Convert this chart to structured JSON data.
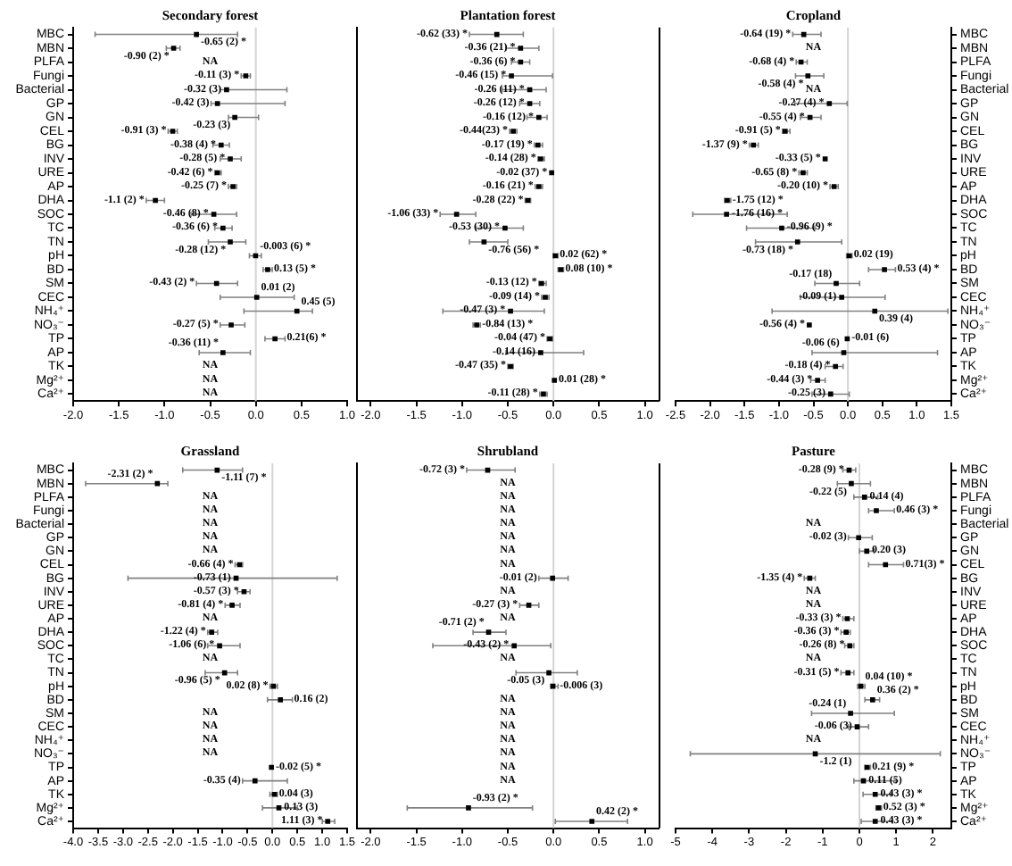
{
  "chart_data": [
    {
      "type": "scatter",
      "title": "Secondary forest",
      "orientation": "horizontal",
      "marker": "square",
      "color": "#000000",
      "categories": [
        "MBC",
        "MBN",
        "PLFA",
        "Fungi",
        "Bacterial",
        "GP",
        "GN",
        "CEL",
        "BG",
        "INV",
        "URE",
        "AP",
        "DHA",
        "SOC",
        "TC",
        "TN",
        "pH",
        "BD",
        "SM",
        "CEC",
        "NH₄⁺",
        "NO₃⁻",
        "TP",
        "AP",
        "TK",
        "Mg²⁺",
        "Ca²⁺"
      ],
      "values": [
        -0.65,
        -0.9,
        null,
        -0.11,
        -0.32,
        -0.42,
        -0.23,
        -0.91,
        -0.38,
        -0.28,
        -0.42,
        -0.25,
        -1.1,
        -0.46,
        -0.36,
        -0.28,
        -0.003,
        0.13,
        -0.43,
        0.01,
        0.45,
        -0.27,
        0.21,
        -0.36,
        null,
        null,
        null
      ],
      "errors": [
        [
          -1.76,
          -0.2
        ],
        [
          -0.98,
          -0.83
        ],
        null,
        [
          -0.16,
          -0.06
        ],
        [
          -0.39,
          0.34
        ],
        [
          -0.49,
          0.32
        ],
        [
          -0.3,
          0.03
        ],
        [
          -0.96,
          -0.86
        ],
        [
          -0.47,
          -0.29
        ],
        [
          -0.39,
          -0.16
        ],
        [
          -0.45,
          -0.38
        ],
        [
          -0.3,
          -0.21
        ],
        [
          -1.2,
          -1.0
        ],
        [
          -0.71,
          -0.21
        ],
        [
          -0.45,
          -0.26
        ],
        [
          -0.52,
          -0.11
        ],
        [
          -0.07,
          0.06
        ],
        [
          0.08,
          0.18
        ],
        [
          -0.65,
          -0.2
        ],
        [
          -0.39,
          0.42
        ],
        [
          -0.13,
          0.62
        ],
        [
          -0.39,
          -0.12
        ],
        [
          0.1,
          0.32
        ],
        [
          -0.62,
          -0.06
        ],
        null,
        null,
        null
      ],
      "value_labels": [
        "-0.65 (2) *",
        "-0.90 (2) *",
        "NA",
        "-0.11 (3) *",
        "-0.32 (3)",
        "-0.42 (3)",
        "-0.23 (3)",
        "-0.91 (3) *",
        "-0.38 (4) *",
        "-0.28 (5) *",
        "-0.42 (6) *",
        "-0.25 (7) *",
        "-1.1 (2) *",
        "-0.46 (8) *",
        "-0.36 (6) *",
        "-0.28 (12) *",
        "-0.003 (6) *",
        "0.13 (5) *",
        "-0.43 (2) *",
        "0.01 (2)",
        "0.45 (5)",
        "-0.27 (5) *",
        "0.21(6) *",
        "-0.36 (11) *",
        "NA",
        "NA",
        "NA"
      ],
      "xlim": [
        -2,
        1
      ],
      "xticks": [
        {
          "value": -2,
          "label": "-2.0"
        },
        -1.5,
        {
          "value": -1,
          "label": "-1.0"
        },
        -0.5,
        {
          "value": 0,
          "label": "0.0"
        },
        0.5,
        {
          "value": 1,
          "label": "1.0"
        }
      ],
      "ref_lines": [
        {
          "axis": "x",
          "value": 0,
          "color": "#d4d4d4"
        }
      ]
    },
    {
      "type": "scatter",
      "title": "Plantation forest",
      "orientation": "horizontal",
      "marker": "square",
      "color": "#000000",
      "tick_labels": "x",
      "categories": [
        null,
        null,
        null,
        null,
        null,
        null,
        null,
        null,
        null,
        null,
        null,
        null,
        null,
        null,
        null,
        null,
        null,
        null,
        null,
        null,
        null,
        null,
        null,
        null,
        null,
        null,
        null
      ],
      "values": [
        -0.62,
        -0.36,
        -0.36,
        -0.46,
        -0.26,
        -0.26,
        -0.16,
        -0.44,
        -0.17,
        -0.14,
        -0.02,
        -0.16,
        -0.28,
        -1.06,
        -0.53,
        -0.76,
        0.02,
        0.08,
        -0.13,
        -0.09,
        -0.47,
        -0.84,
        -0.04,
        -0.14,
        -0.47,
        0.01,
        -0.11
      ],
      "errors": [
        [
          -0.92,
          -0.33
        ],
        [
          -0.52,
          -0.16
        ],
        [
          -0.46,
          -0.26
        ],
        [
          -0.56,
          -0.01
        ],
        [
          -0.56,
          -0.08
        ],
        [
          -0.37,
          -0.15
        ],
        [
          -0.29,
          -0.07
        ],
        [
          -0.48,
          -0.4
        ],
        [
          -0.21,
          -0.12
        ],
        [
          -0.17,
          -0.1
        ],
        null,
        [
          -0.2,
          -0.12
        ],
        [
          -0.31,
          -0.25
        ],
        [
          -1.24,
          -0.85
        ],
        [
          -0.85,
          -0.33
        ],
        [
          -0.92,
          -0.5
        ],
        [
          0.0,
          0.05
        ],
        [
          0.05,
          0.11
        ],
        [
          -0.16,
          -0.08
        ],
        [
          -0.13,
          -0.05
        ],
        [
          -1.21,
          -0.1
        ],
        [
          -0.88,
          -0.8
        ],
        [
          -0.07,
          -0.01
        ],
        [
          -0.52,
          0.33
        ],
        [
          -0.5,
          -0.44
        ],
        null,
        [
          -0.15,
          -0.07
        ]
      ],
      "value_labels": [
        "-0.62 (33) *",
        "-0.36 (21) *",
        "-0.36 (6) *",
        "-0.46 (15) *",
        "-0.26 (11) *",
        "-0.26 (12) *",
        "-0.16 (12) *",
        "-0.44(23) *",
        "-0.17 (19) *",
        "-0.14 (28) *",
        "-0.02 (37) *",
        "-0.16 (21) *",
        "-0.28 (22) *",
        "-1.06 (33) *",
        "-0.53 (30) *",
        "-0.76 (56) *",
        "0.02 (62) *",
        "0.08 (10) *",
        "-0.13 (12) *",
        "-0.09 (14) *",
        "-0.47 (3) *",
        "-0.84 (13) *",
        "-0.04 (47) *",
        "-0.14 (16)",
        "-0.47 (35) *",
        "0.01 (28) *",
        "-0.11 (28) *"
      ],
      "xlim": [
        -2.15,
        1.15
      ],
      "xticks": [
        {
          "value": -2,
          "label": "-2.0"
        },
        -1.5,
        {
          "value": -1,
          "label": "-1.0"
        },
        -0.5,
        {
          "value": 0,
          "label": "0.0"
        },
        0.5,
        {
          "value": 1,
          "label": "1.0"
        }
      ],
      "ref_lines": [
        {
          "axis": "x",
          "value": 0,
          "color": "#d4d4d4"
        }
      ]
    },
    {
      "type": "scatter",
      "title": "Cropland",
      "orientation": "horizontal",
      "marker": "square",
      "color": "#000000",
      "categories": [
        "MBC",
        "MBN",
        "PLFA",
        "Fungi",
        "Bacterial",
        "GP",
        "GN",
        "CEL",
        "BG",
        "INV",
        "URE",
        "AP",
        "DHA",
        "SOC",
        "TC",
        "TN",
        "pH",
        "BD",
        "SM",
        "CEC",
        "NH₄⁺",
        "NO₃⁻",
        "TP",
        "AP",
        "TK",
        "Mg²⁺",
        "Ca²⁺"
      ],
      "values": [
        -0.64,
        null,
        -0.68,
        -0.58,
        null,
        -0.27,
        -0.55,
        -0.91,
        -1.37,
        -0.33,
        -0.65,
        -0.2,
        -1.75,
        -1.76,
        -0.96,
        -0.73,
        0.02,
        0.53,
        -0.17,
        -0.09,
        0.39,
        -0.56,
        -0.01,
        -0.06,
        -0.18,
        -0.44,
        -0.25
      ],
      "errors": [
        [
          -0.8,
          -0.39
        ],
        null,
        [
          -0.75,
          -0.59
        ],
        [
          -0.76,
          -0.35
        ],
        null,
        [
          -0.77,
          -0.01
        ],
        [
          -0.69,
          -0.39
        ],
        [
          -0.95,
          -0.84
        ],
        [
          -1.43,
          -1.3
        ],
        null,
        [
          -0.71,
          -0.59
        ],
        [
          -0.26,
          -0.14
        ],
        [
          -1.79,
          -1.7
        ],
        [
          -2.25,
          -0.88
        ],
        [
          -1.47,
          -0.48
        ],
        [
          -1.34,
          -0.09
        ],
        [
          -0.02,
          0.06
        ],
        [
          0.3,
          0.69
        ],
        [
          -0.48,
          0.17
        ],
        [
          -0.69,
          0.54
        ],
        [
          -1.1,
          1.45
        ],
        null,
        null,
        [
          -0.52,
          1.3
        ],
        [
          -0.33,
          -0.07
        ],
        [
          -0.54,
          -0.33
        ],
        [
          -0.52,
          0.02
        ]
      ],
      "value_labels": [
        "-0.64 (19) *",
        "NA",
        "-0.68 (4) *",
        "-0.58 (4) *",
        "NA",
        "-0.27 (4) *",
        "-0.55 (4) *",
        "-0.91 (5) *",
        "-1.37 (9) *",
        "-0.33 (5) *",
        "-0.65 (8) *",
        "-0.20 (10) *",
        "-1.75 (12) *",
        "-1.76 (16) *",
        "-0.96 (9) *",
        "-0.73 (18) *",
        "0.02 (19)",
        "0.53 (4) *",
        "-0.17 (18)",
        "-0.09 (1)",
        "0.39 (4)",
        "-0.56 (4) *",
        "-0.01 (6)",
        "-0.06 (6)",
        "-0.18 (4) *",
        "-0.44 (3) *",
        "-0.25 (3)"
      ],
      "xlim": [
        -2.5,
        1.5
      ],
      "xticks": [
        -2.5,
        {
          "value": -2,
          "label": "-2.0"
        },
        -1.5,
        {
          "value": -1,
          "label": "-1.0"
        },
        -0.5,
        {
          "value": 0,
          "label": "0.0"
        },
        0.5,
        {
          "value": 1,
          "label": "1.0"
        },
        1.5
      ],
      "ref_lines": [
        {
          "axis": "x",
          "value": 0,
          "color": "#d4d4d4"
        }
      ]
    },
    {
      "type": "scatter",
      "title": "Grassland",
      "orientation": "horizontal",
      "marker": "square",
      "color": "#000000",
      "categories": [
        "MBC",
        "MBN",
        "PLFA",
        "Fungi",
        "Bacterial",
        "GP",
        "GN",
        "CEL",
        "BG",
        "INV",
        "URE",
        "AP",
        "DHA",
        "SOC",
        "TC",
        "TN",
        "pH",
        "BD",
        "SM",
        "CEC",
        "NH₄⁺",
        "NO₃⁻",
        "TP",
        "AP",
        "TK",
        "Mg²⁺",
        "Ca²⁺"
      ],
      "values": [
        -1.11,
        -2.31,
        null,
        null,
        null,
        null,
        null,
        -0.66,
        -0.73,
        -0.57,
        -0.81,
        null,
        -1.22,
        -1.06,
        null,
        -0.96,
        0.02,
        0.16,
        null,
        null,
        null,
        null,
        -0.02,
        -0.35,
        0.04,
        0.13,
        1.11
      ],
      "errors": [
        [
          -1.8,
          -0.6
        ],
        [
          -3.75,
          -2.1
        ],
        null,
        null,
        null,
        null,
        null,
        [
          -0.75,
          -0.6
        ],
        [
          -2.9,
          1.3
        ],
        [
          -0.7,
          -0.45
        ],
        [
          -0.95,
          -0.65
        ],
        null,
        [
          -1.3,
          -1.1
        ],
        [
          -1.3,
          -0.65
        ],
        null,
        [
          -1.35,
          -0.7
        ],
        [
          -0.05,
          0.1
        ],
        [
          -0.1,
          0.4
        ],
        null,
        null,
        null,
        null,
        null,
        [
          -0.6,
          0.3
        ],
        [
          -0.05,
          0.1
        ],
        [
          -0.2,
          0.5
        ],
        [
          1.0,
          1.25
        ]
      ],
      "value_labels": [
        "-1.11 (7) *",
        "-2.31 (2) *",
        "NA",
        "NA",
        "NA",
        "NA",
        "NA",
        "-0.66 (4) *",
        "-0.73 (1)",
        "-0.57 (3) *",
        "-0.81 (4) *",
        "NA",
        "-1.22 (4) *",
        "-1.06 (6) *",
        "NA",
        "-0.96 (5) *",
        "0.02 (8) *",
        "0.16 (2)",
        "NA",
        "NA",
        "NA",
        "NA",
        "-0.02 (5) *",
        "-0.35 (4)",
        "0.04 (3)",
        "0.13 (3)",
        "1.11 (3) *"
      ],
      "xlim": [
        -4,
        1.5
      ],
      "xticks": [
        {
          "value": -4,
          "label": "-4.0"
        },
        -3.5,
        {
          "value": -3,
          "label": "-3.0"
        },
        -2.5,
        {
          "value": -2,
          "label": "-2.0"
        },
        -1.5,
        {
          "value": -1,
          "label": "-1.0"
        },
        -0.5,
        {
          "value": 0,
          "label": "0.0"
        },
        0.5,
        {
          "value": 1,
          "label": "1.0"
        },
        1.5
      ],
      "ref_lines": [
        {
          "axis": "x",
          "value": 0,
          "color": "#d4d4d4"
        }
      ]
    },
    {
      "type": "scatter",
      "title": "Shrubland",
      "orientation": "horizontal",
      "marker": "square",
      "color": "#000000",
      "tick_labels": "x",
      "categories": [
        null,
        null,
        null,
        null,
        null,
        null,
        null,
        null,
        null,
        null,
        null,
        null,
        null,
        null,
        null,
        null,
        null,
        null,
        null,
        null,
        null,
        null,
        null,
        null,
        null,
        null,
        null
      ],
      "values": [
        -0.72,
        null,
        null,
        null,
        null,
        null,
        null,
        null,
        -0.01,
        null,
        -0.27,
        null,
        -0.71,
        -0.43,
        null,
        -0.05,
        -0.006,
        null,
        null,
        null,
        null,
        null,
        null,
        null,
        null,
        -0.93,
        0.42
      ],
      "errors": [
        [
          -0.95,
          -0.42
        ],
        null,
        null,
        null,
        null,
        null,
        null,
        null,
        [
          -0.16,
          0.16
        ],
        null,
        [
          -0.37,
          -0.16
        ],
        null,
        [
          -0.88,
          -0.52
        ],
        [
          -1.32,
          -0.03
        ],
        null,
        [
          -0.41,
          0.26
        ],
        [
          -0.03,
          0.05
        ],
        null,
        null,
        null,
        null,
        null,
        null,
        null,
        null,
        [
          -1.6,
          -0.23
        ],
        [
          0.02,
          0.81
        ]
      ],
      "value_labels": [
        "-0.72 (3) *",
        "NA",
        "NA",
        "NA",
        "NA",
        "NA",
        "NA",
        "NA",
        "-0.01 (2)",
        "NA",
        "-0.27 (3) *",
        "NA",
        "-0.71 (2) *",
        "-0.43 (2) *",
        "NA",
        "-0.05 (3)",
        "-0.006 (3)",
        "NA",
        "NA",
        "NA",
        "NA",
        "NA",
        "NA",
        "NA",
        null,
        "-0.93 (2) *",
        "0.42 (2) *"
      ],
      "xlim": [
        -2.15,
        1.15
      ],
      "xticks": [
        {
          "value": -2,
          "label": "-2.0"
        },
        -1.5,
        {
          "value": -1,
          "label": "-1.0"
        },
        -0.5,
        {
          "value": 0,
          "label": "0.0"
        },
        0.5,
        {
          "value": 1,
          "label": "1.0"
        }
      ],
      "ref_lines": [
        {
          "axis": "x",
          "value": 0,
          "color": "#d4d4d4"
        }
      ]
    },
    {
      "type": "scatter",
      "title": "Pasture",
      "orientation": "horizontal",
      "marker": "square",
      "color": "#000000",
      "categories": [
        "MBC",
        "MBN",
        "PLFA",
        "Fungi",
        "Bacterial",
        "GP",
        "GN",
        "CEL",
        "BG",
        "INV",
        "URE",
        "AP",
        "DHA",
        "SOC",
        "TC",
        "TN",
        "pH",
        "BD",
        "SM",
        "CEC",
        "NH₄⁺",
        "NO₃⁻",
        "TP",
        "AP",
        "TK",
        "Mg²⁺",
        "Ca²⁺"
      ],
      "values": [
        -0.28,
        -0.22,
        0.14,
        0.46,
        null,
        -0.02,
        0.2,
        0.71,
        -1.35,
        null,
        null,
        -0.33,
        -0.36,
        -0.26,
        null,
        -0.31,
        0.04,
        0.36,
        -0.24,
        -0.06,
        null,
        -1.2,
        0.21,
        0.11,
        0.43,
        0.52,
        0.43
      ],
      "errors": [
        [
          -0.45,
          -0.1
        ],
        [
          -0.6,
          0.3
        ],
        [
          -0.15,
          0.5
        ],
        [
          0.25,
          0.95
        ],
        null,
        [
          -0.3,
          0.35
        ],
        [
          0.0,
          0.4
        ],
        [
          0.25,
          1.2
        ],
        [
          -1.5,
          -1.2
        ],
        null,
        null,
        [
          -0.45,
          -0.15
        ],
        [
          -0.5,
          -0.25
        ],
        [
          -0.4,
          -0.15
        ],
        null,
        [
          -0.5,
          -0.15
        ],
        [
          -0.05,
          0.15
        ],
        [
          0.15,
          0.55
        ],
        [
          -1.3,
          0.95
        ],
        [
          -0.3,
          0.25
        ],
        null,
        [
          -4.6,
          2.2
        ],
        [
          0.15,
          0.3
        ],
        [
          -0.15,
          1.0
        ],
        [
          0.1,
          0.85
        ],
        [
          0.45,
          0.6
        ],
        [
          0.05,
          0.9
        ]
      ],
      "value_labels": [
        "-0.28 (9) *",
        "-0.22 (5)",
        "0.14 (4)",
        "0.46 (3) *",
        "NA",
        "-0.02 (3)",
        "0.20 (3)",
        "0.71(3) *",
        "-1.35 (4) *",
        "NA",
        "NA",
        "-0.33 (3) *",
        "-0.36 (3) *",
        "-0.26 (8) *",
        "NA",
        "-0.31 (5) *",
        "0.04 (10) *",
        "0.36 (2) *",
        "-0.24 (1)",
        "-0.06 (3)",
        "NA",
        "-1.2 (1)",
        "0.21 (9) *",
        "0.11 (5)",
        "0.43 (3) *",
        "0.52 (3) *",
        "0.43 (3) *"
      ],
      "xlim": [
        -5,
        2.5
      ],
      "xticks": [
        -5,
        -4,
        -3,
        -2,
        -1,
        0,
        1,
        2
      ],
      "ref_lines": [
        {
          "axis": "x",
          "value": 0,
          "color": "#d4d4d4"
        }
      ]
    }
  ]
}
